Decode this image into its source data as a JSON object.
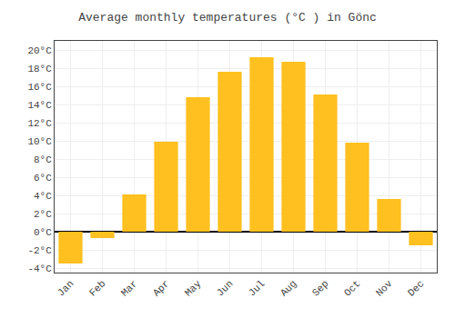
{
  "chart_data": {
    "type": "bar",
    "title": "Average monthly temperatures (°C ) in Gönc",
    "categories": [
      "Jan",
      "Feb",
      "Mar",
      "Apr",
      "May",
      "Jun",
      "Jul",
      "Aug",
      "Sep",
      "Oct",
      "Nov",
      "Dec"
    ],
    "values": [
      -3.5,
      -0.7,
      4.1,
      9.9,
      14.8,
      17.6,
      19.2,
      18.7,
      15.1,
      9.8,
      3.6,
      -1.5
    ],
    "color": "#FFC020",
    "ylim": [
      -4.5,
      21
    ],
    "yticks": [
      {
        "value": -4,
        "label": "-4°C"
      },
      {
        "value": -2,
        "label": "-2°C"
      },
      {
        "value": 0,
        "label": "0°C"
      },
      {
        "value": 2,
        "label": "2°C"
      },
      {
        "value": 4,
        "label": "4°C"
      },
      {
        "value": 6,
        "label": "6°C"
      },
      {
        "value": 8,
        "label": "8°C"
      },
      {
        "value": 10,
        "label": "10°C"
      },
      {
        "value": 12,
        "label": "12°C"
      },
      {
        "value": 14,
        "label": "14°C"
      },
      {
        "value": 16,
        "label": "16°C"
      },
      {
        "value": 18,
        "label": "18°C"
      },
      {
        "value": 20,
        "label": "20°C"
      }
    ],
    "grid": true
  }
}
